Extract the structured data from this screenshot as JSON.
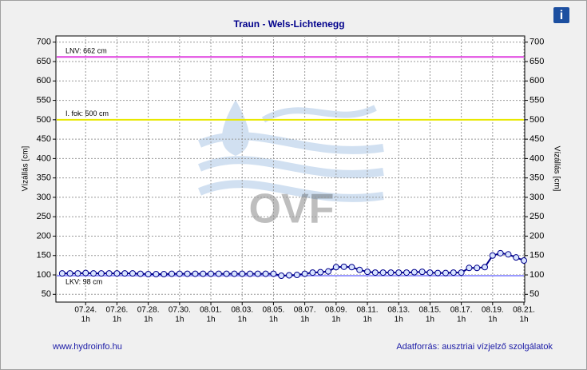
{
  "chart_data": {
    "type": "line",
    "title": "Traun - Wels-Lichtenegg",
    "y_label": "Vízállás [cm]",
    "watermark": "OVF",
    "footer_left": "www.hydroinfo.hu",
    "footer_right": "Adatforrás: ausztriai vízjelző szolgálatok",
    "x_tick_sublabel": "1h",
    "xlim": [
      -1.9,
      28.05
    ],
    "xticks": [
      {
        "value": 0,
        "label": "07.24."
      },
      {
        "value": 2,
        "label": "07.26."
      },
      {
        "value": 4,
        "label": "07.28."
      },
      {
        "value": 6,
        "label": "07.30."
      },
      {
        "value": 8,
        "label": "08.01."
      },
      {
        "value": 10,
        "label": "08.03."
      },
      {
        "value": 12,
        "label": "08.05."
      },
      {
        "value": 14,
        "label": "08.07."
      },
      {
        "value": 16,
        "label": "08.09."
      },
      {
        "value": 18,
        "label": "08.11."
      },
      {
        "value": 20,
        "label": "08.13."
      },
      {
        "value": 22,
        "label": "08.15."
      },
      {
        "value": 24,
        "label": "08.17."
      },
      {
        "value": 26,
        "label": "08.19."
      },
      {
        "value": 28,
        "label": "08.21."
      }
    ],
    "ylim": [
      30,
      716
    ],
    "yticks": [
      50,
      100,
      150,
      200,
      250,
      300,
      350,
      400,
      450,
      500,
      550,
      600,
      650,
      700
    ],
    "grid": true,
    "thresholds": [
      {
        "label": "LNV: 662 cm",
        "value": 662,
        "color": "#e040e0"
      },
      {
        "label": "I. fok: 500 cm",
        "value": 500,
        "color": "#e8e800"
      },
      {
        "label": "LKV: 98 cm",
        "value": 98,
        "color": "#9a9aff"
      }
    ],
    "x": [
      -1.5,
      -1,
      -0.5,
      0,
      0.5,
      1,
      1.5,
      2,
      2.5,
      3,
      3.5,
      4,
      4.5,
      5,
      5.5,
      6,
      6.5,
      7,
      7.5,
      8,
      8.5,
      9,
      9.5,
      10,
      10.5,
      11,
      11.5,
      12,
      12.5,
      13,
      13.5,
      14,
      14.5,
      15,
      15.5,
      16,
      16.5,
      17,
      17.5,
      18,
      18.5,
      19,
      19.5,
      20,
      20.5,
      21,
      21.5,
      22,
      22.5,
      23,
      23.5,
      24,
      24.5,
      25,
      25.5,
      26,
      26.5,
      27,
      27.5,
      28
    ],
    "series": [
      {
        "color": "#00008b",
        "values": [
          104,
          104,
          104,
          105,
          104,
          104,
          104,
          104,
          104,
          104,
          103,
          102,
          102,
          102,
          103,
          103,
          103,
          103,
          103,
          103,
          103,
          103,
          103,
          103,
          103,
          103,
          103,
          103,
          98,
          99,
          100,
          103,
          106,
          107,
          109,
          120,
          121,
          120,
          113,
          108,
          106,
          106,
          106,
          106,
          106,
          107,
          108,
          106,
          105,
          105,
          106,
          106,
          118,
          118,
          120,
          150,
          156,
          153,
          145,
          137
        ]
      }
    ]
  }
}
